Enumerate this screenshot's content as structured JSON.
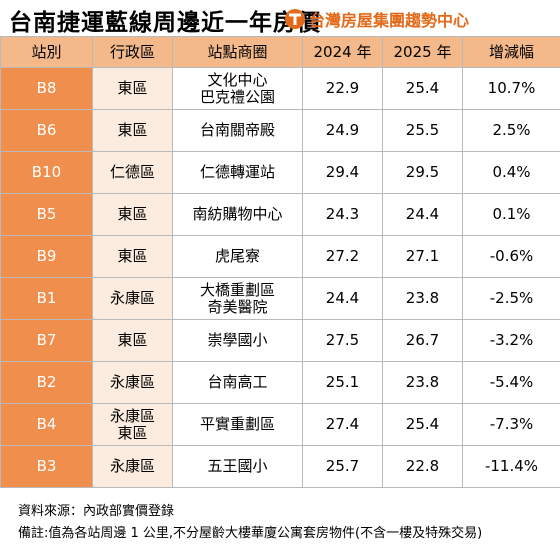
{
  "header": {
    "title": "台南捷運藍線周邊近一年房價",
    "brand": "台灣房屋集團趨勢中心",
    "brand_color": "#e36a1a"
  },
  "table": {
    "columns": [
      "站別",
      "行政區",
      "站點商圈",
      "2024 年",
      "2025 年",
      "增減幅"
    ],
    "rows": [
      {
        "station": "B8",
        "district": [
          "東區"
        ],
        "name": [
          "文化中心",
          "巴克禮公園"
        ],
        "y2024": "22.9",
        "y2025": "25.4",
        "change": "10.7%"
      },
      {
        "station": "B6",
        "district": [
          "東區"
        ],
        "name": [
          "台南關帝殿"
        ],
        "y2024": "24.9",
        "y2025": "25.5",
        "change": "2.5%"
      },
      {
        "station": "B10",
        "district": [
          "仁德區"
        ],
        "name": [
          "仁德轉運站"
        ],
        "y2024": "29.4",
        "y2025": "29.5",
        "change": "0.4%"
      },
      {
        "station": "B5",
        "district": [
          "東區"
        ],
        "name": [
          "南紡購物中心"
        ],
        "y2024": "24.3",
        "y2025": "24.4",
        "change": "0.1%"
      },
      {
        "station": "B9",
        "district": [
          "東區"
        ],
        "name": [
          "虎尾寮"
        ],
        "y2024": "27.2",
        "y2025": "27.1",
        "change": "-0.6%"
      },
      {
        "station": "B1",
        "district": [
          "永康區"
        ],
        "name": [
          "大橋重劃區",
          "奇美醫院"
        ],
        "y2024": "24.4",
        "y2025": "23.8",
        "change": "-2.5%"
      },
      {
        "station": "B7",
        "district": [
          "東區"
        ],
        "name": [
          "崇學國小"
        ],
        "y2024": "27.5",
        "y2025": "26.7",
        "change": "-3.2%"
      },
      {
        "station": "B2",
        "district": [
          "永康區"
        ],
        "name": [
          "台南高工"
        ],
        "y2024": "25.1",
        "y2025": "23.8",
        "change": "-5.4%"
      },
      {
        "station": "B4",
        "district": [
          "永康區",
          "東區"
        ],
        "name": [
          "平實重劃區"
        ],
        "y2024": "27.4",
        "y2025": "25.4",
        "change": "-7.3%"
      },
      {
        "station": "B3",
        "district": [
          "永康區"
        ],
        "name": [
          "五王國小"
        ],
        "y2024": "25.7",
        "y2025": "22.8",
        "change": "-11.4%"
      }
    ],
    "colors": {
      "station_bg": "#ef8e4d",
      "header_bg": "#f3b98a",
      "district_bg": "#fcecdf"
    }
  },
  "footer": {
    "source": "資料來源：內政部實價登錄",
    "note": "備註:值為各站周邊 1 公里,不分屋齡大樓華廈公寓套房物件(不含一樓及特殊交易)"
  }
}
